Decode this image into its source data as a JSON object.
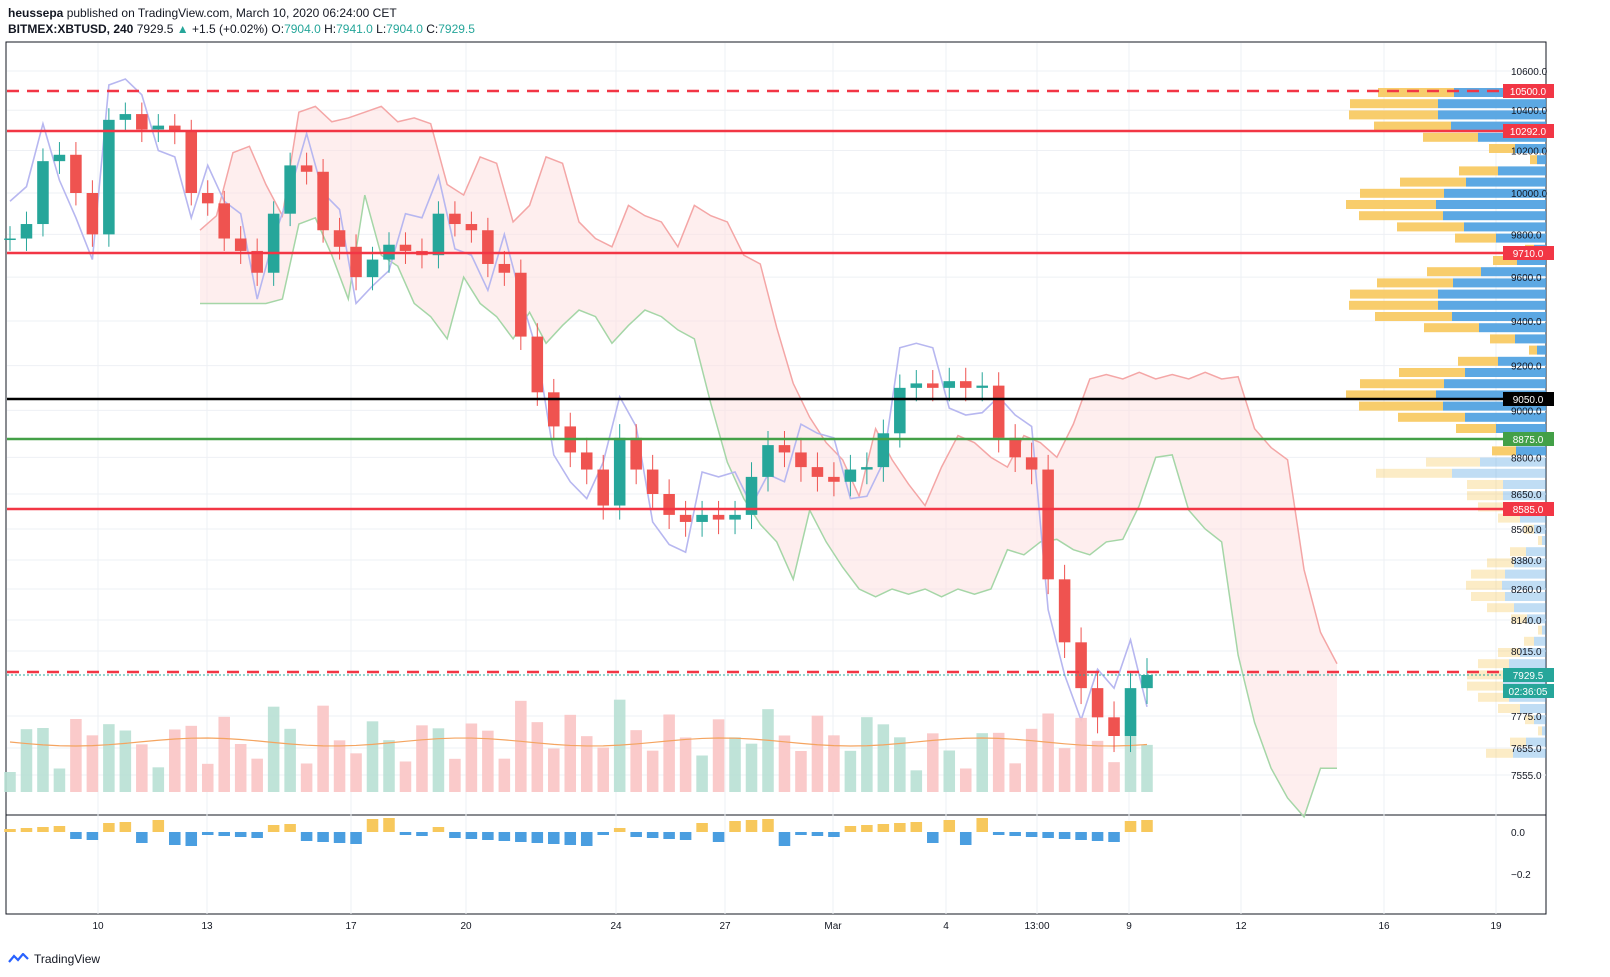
{
  "header": {
    "author": "heussepa",
    "published_text": "published on TradingView.com, March 10, 2020 06:24:00 CET",
    "symbol": "BITMEX:XBTUSD, 240",
    "last": "7929.5",
    "change_arrow": "▲",
    "change": "+1.5 (+0.02%)",
    "o_label": "O:",
    "o": "7904.0",
    "h_label": "H:",
    "h": "7941.0",
    "l_label": "L:",
    "l": "7904.0",
    "c_label": "C:",
    "c": "7929.5"
  },
  "brand": {
    "icon": "tradingview-logo-icon",
    "name": "TradingView"
  },
  "colors": {
    "bull": "#26a69a",
    "bear": "#ef5350",
    "red_level": "#f23645",
    "green_level": "#43a047",
    "black_level": "#000000",
    "cloud_bull": "#a5d6a7",
    "cloud_bear": "#f8bbbb",
    "kijun": "#b7b7f0",
    "vol_ma": "#f4a460",
    "vp_up": "#f7c85c",
    "vp_down": "#4a9ee0"
  },
  "chart_data": {
    "type": "candlestick",
    "symbol": "BITMEX:XBTUSD",
    "timeframe": "240",
    "price_axis_ticks": [
      "10600.0",
      "10400.0",
      "10200.0",
      "10000.0",
      "9800.0",
      "9600.0",
      "9400.0",
      "9200.0",
      "9000.0",
      "8800.0",
      "8650.0",
      "8500.0",
      "8380.0",
      "8260.0",
      "8140.0",
      "8015.0",
      "7775.0",
      "7655.0",
      "7555.0"
    ],
    "time_axis_labels": [
      "10",
      "13",
      "17",
      "20",
      "24",
      "27",
      "Mar",
      "4",
      "13:00",
      "9",
      "12",
      "16",
      "19"
    ],
    "osc_ticks": [
      "0.0",
      "−0.2"
    ],
    "levels": [
      {
        "label": "10500.0",
        "price": 10500,
        "color": "#f23645",
        "style": "dashed"
      },
      {
        "label": "10292.0",
        "price": 10292,
        "color": "#f23645",
        "style": "solid"
      },
      {
        "label": "9710.0",
        "price": 9710,
        "color": "#f23645",
        "style": "solid"
      },
      {
        "label": "9050.0",
        "price": 9050,
        "color": "#000000",
        "style": "solid"
      },
      {
        "label": "8875.0",
        "price": 8875,
        "color": "#43a047",
        "style": "solid"
      },
      {
        "label": "8585.0",
        "price": 8585,
        "color": "#f23645",
        "style": "solid"
      },
      {
        "label": "",
        "price": 7940,
        "color": "#f23645",
        "style": "dashed"
      }
    ],
    "last_price_label": "7929.5",
    "countdown_label": "02:36:05",
    "price_path": [
      9780,
      9850,
      10150,
      10180,
      10000,
      9800,
      10350,
      10380,
      10300,
      10320,
      10290,
      10000,
      9950,
      9780,
      9720,
      9620,
      9900,
      10130,
      10100,
      9820,
      9740,
      9600,
      9680,
      9750,
      9720,
      9700,
      9900,
      9850,
      9820,
      9660,
      9620,
      9330,
      9080,
      8930,
      8820,
      8750,
      8600,
      8880,
      8750,
      8650,
      8560,
      8530,
      8560,
      8540,
      8560,
      8720,
      8850,
      8820,
      8760,
      8720,
      8700,
      8750,
      8760,
      8900,
      9100,
      9120,
      9100,
      9130,
      9100,
      9110,
      8880,
      8800,
      8750,
      8300,
      8050,
      7880,
      7770,
      7700,
      7880,
      7929.5
    ]
  }
}
